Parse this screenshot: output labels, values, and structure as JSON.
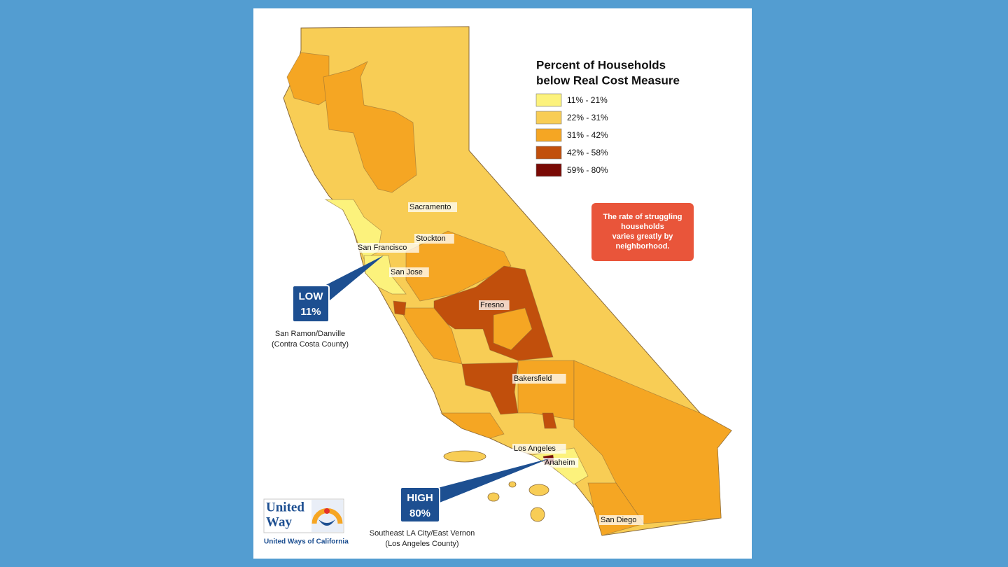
{
  "legend": {
    "title": [
      "Percent of Households",
      "below Real Cost Measure"
    ],
    "items": [
      {
        "label": "11% - 21%",
        "color": "#fcf27c"
      },
      {
        "label": "22% - 31%",
        "color": "#f8cd55"
      },
      {
        "label": "31% - 42%",
        "color": "#f5a623"
      },
      {
        "label": "42% - 58%",
        "color": "#c14f0c"
      },
      {
        "label": "59% - 80%",
        "color": "#7a0a05"
      }
    ]
  },
  "cities": [
    "Sacramento",
    "Stockton",
    "San Francisco",
    "San Jose",
    "Fresno",
    "Bakersfield",
    "Los Angeles",
    "Anaheim",
    "San Diego"
  ],
  "callouts": {
    "low": {
      "label": "LOW",
      "value": "11%",
      "place": [
        "San Ramon/Danville",
        "(Contra Costa County)"
      ]
    },
    "high": {
      "label": "HIGH",
      "value": "80%",
      "place": [
        "Southeast LA City/East Vernon",
        "(Los Angeles County)"
      ]
    }
  },
  "note": [
    "The rate of struggling",
    "households",
    "varies greatly by",
    "neighborhood."
  ],
  "logo": {
    "name": [
      "United",
      "Way"
    ],
    "tagline": "United Ways of California"
  }
}
